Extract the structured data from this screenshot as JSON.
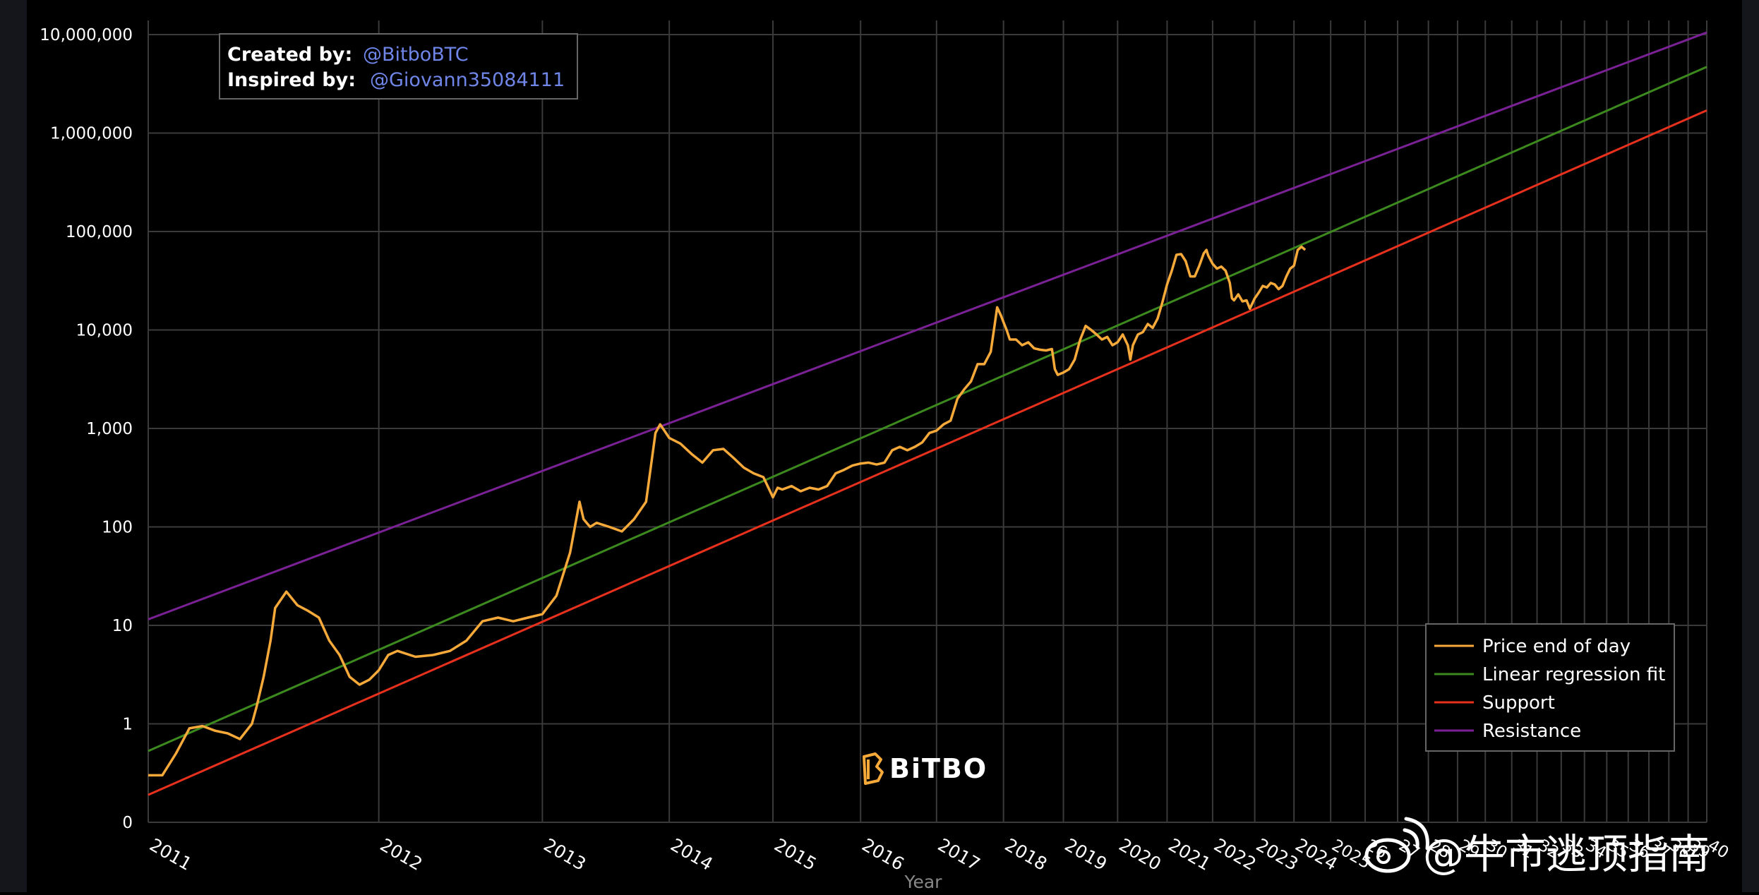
{
  "chart_data": {
    "type": "line",
    "title": "",
    "xlabel": "Year",
    "ylabel": "",
    "y_scale": "log",
    "ylim": [
      0.1,
      10000000
    ],
    "y_tick_values": [
      0.1,
      1,
      10,
      100,
      1000,
      10000,
      100000,
      1000000,
      10000000
    ],
    "y_tick_labels": [
      "0",
      "1",
      "10",
      "100",
      "1,000",
      "10,000",
      "100,000",
      "1,000,000",
      "10,000,000"
    ],
    "x_scale": "log-of-days",
    "xlim_years": [
      2011.0,
      2040.0
    ],
    "x_tick_years": [
      2011,
      2012,
      2013,
      2014,
      2015,
      2016,
      2017,
      2018,
      2019,
      2020,
      2021,
      2022,
      2023,
      2024,
      2025,
      2026,
      2027,
      2028,
      2029,
      2030,
      2031,
      2032,
      2033,
      2034,
      2035,
      2036,
      2037,
      2038,
      2039,
      2040
    ],
    "x_tick_labels": [
      "2011",
      "2012",
      "2013",
      "2014",
      "2015",
      "2016",
      "2017",
      "2018",
      "2019",
      "2020",
      "2021",
      "2022",
      "2023",
      "2024",
      "2025",
      "26",
      "27",
      "28",
      "29",
      "30",
      "31",
      "32",
      "33",
      "34",
      "35",
      "36",
      "37",
      "38",
      "39",
      "40"
    ],
    "series": [
      {
        "name": "Price end of day",
        "color": "#f7a93a",
        "x": [
          2011.0,
          2011.05,
          2011.1,
          2011.15,
          2011.2,
          2011.25,
          2011.3,
          2011.35,
          2011.4,
          2011.42,
          2011.45,
          2011.48,
          2011.5,
          2011.55,
          2011.6,
          2011.65,
          2011.7,
          2011.75,
          2011.8,
          2011.85,
          2011.9,
          2011.95,
          2012.0,
          2012.05,
          2012.1,
          2012.2,
          2012.3,
          2012.4,
          2012.5,
          2012.6,
          2012.7,
          2012.8,
          2012.9,
          2013.0,
          2013.1,
          2013.2,
          2013.27,
          2013.3,
          2013.35,
          2013.4,
          2013.5,
          2013.6,
          2013.7,
          2013.8,
          2013.88,
          2013.92,
          2014.0,
          2014.1,
          2014.2,
          2014.3,
          2014.4,
          2014.5,
          2014.6,
          2014.7,
          2014.8,
          2014.9,
          2015.0,
          2015.05,
          2015.1,
          2015.2,
          2015.3,
          2015.4,
          2015.5,
          2015.6,
          2015.7,
          2015.8,
          2015.9,
          2016.0,
          2016.1,
          2016.2,
          2016.3,
          2016.4,
          2016.5,
          2016.6,
          2016.7,
          2016.8,
          2016.9,
          2017.0,
          2017.1,
          2017.2,
          2017.3,
          2017.4,
          2017.5,
          2017.6,
          2017.7,
          2017.8,
          2017.85,
          2017.9,
          2017.96,
          2018.0,
          2018.05,
          2018.1,
          2018.2,
          2018.3,
          2018.4,
          2018.5,
          2018.6,
          2018.7,
          2018.8,
          2018.85,
          2018.9,
          2019.0,
          2019.1,
          2019.2,
          2019.3,
          2019.4,
          2019.5,
          2019.6,
          2019.7,
          2019.8,
          2019.9,
          2020.0,
          2020.1,
          2020.2,
          2020.25,
          2020.3,
          2020.4,
          2020.5,
          2020.6,
          2020.7,
          2020.8,
          2020.9,
          2021.0,
          2021.1,
          2021.2,
          2021.3,
          2021.4,
          2021.5,
          2021.6,
          2021.7,
          2021.8,
          2021.86,
          2021.9,
          2022.0,
          2022.1,
          2022.2,
          2022.3,
          2022.4,
          2022.45,
          2022.5,
          2022.6,
          2022.7,
          2022.8,
          2022.88,
          2023.0,
          2023.1,
          2023.2,
          2023.3,
          2023.4,
          2023.5,
          2023.6,
          2023.7,
          2023.8,
          2023.9,
          2024.0,
          2024.1,
          2024.2,
          2024.3
        ],
        "values": [
          0.3,
          0.3,
          0.5,
          0.9,
          0.95,
          0.85,
          0.8,
          0.7,
          1.0,
          1.5,
          3,
          7,
          15,
          22,
          16,
          14,
          12,
          7,
          5,
          3,
          2.5,
          2.8,
          3.5,
          5,
          5.5,
          4.8,
          5,
          5.5,
          7,
          11,
          12,
          11,
          12,
          13,
          20,
          55,
          180,
          120,
          100,
          110,
          100,
          90,
          120,
          180,
          900,
          1100,
          800,
          700,
          550,
          450,
          600,
          620,
          500,
          400,
          350,
          320,
          200,
          250,
          240,
          260,
          230,
          250,
          240,
          260,
          350,
          380,
          420,
          440,
          450,
          430,
          450,
          600,
          650,
          600,
          650,
          720,
          900,
          950,
          1100,
          1200,
          2000,
          2500,
          3000,
          4500,
          4500,
          6000,
          10000,
          17000,
          14000,
          12000,
          10000,
          8000,
          8000,
          7000,
          7500,
          6500,
          6300,
          6200,
          6400,
          4000,
          3500,
          3700,
          4000,
          5000,
          8000,
          11000,
          10000,
          9000,
          8000,
          8500,
          7000,
          7500,
          9000,
          7000,
          5000,
          7000,
          9000,
          9500,
          11500,
          10500,
          13000,
          19000,
          29000,
          40000,
          58000,
          59000,
          50000,
          35000,
          35000,
          45000,
          60000,
          65000,
          57000,
          47000,
          42000,
          44000,
          40000,
          30000,
          21000,
          20000,
          23000,
          19500,
          20000,
          16500,
          21000,
          24000,
          28000,
          27000,
          30000,
          29000,
          26000,
          28000,
          35000,
          42000,
          45000,
          65000,
          70000,
          65000
        ],
        "values_note": "approximate, read off log axis"
      },
      {
        "name": "Linear regression fit",
        "color": "#3c8a1e",
        "x": [
          2011.0,
          2040.0
        ],
        "values": [
          0.53,
          4700000
        ]
      },
      {
        "name": "Support",
        "color": "#e8311d",
        "x": [
          2011.0,
          2040.0
        ],
        "values": [
          0.19,
          1700000
        ]
      },
      {
        "name": "Resistance",
        "color": "#7b2196",
        "x": [
          2011.0,
          2040.0
        ],
        "values": [
          11.5,
          10500000
        ]
      }
    ],
    "legend": {
      "position": "bottom-right",
      "entries": [
        "Price end of day",
        "Linear regression fit",
        "Support",
        "Resistance"
      ]
    },
    "annotations": [
      {
        "label": "Created by:",
        "handle": "@BitboBTC"
      },
      {
        "label": "Inspired by:",
        "handle": "@Giovann35084111"
      }
    ],
    "grid": true
  },
  "brand": {
    "name": "BiTBO",
    "logo_icon": "bitbo-b-logo-icon",
    "logo_color": "#f7a93a"
  },
  "watermark": {
    "icon": "weibo-icon",
    "text": "@牛市逃顶指南"
  }
}
